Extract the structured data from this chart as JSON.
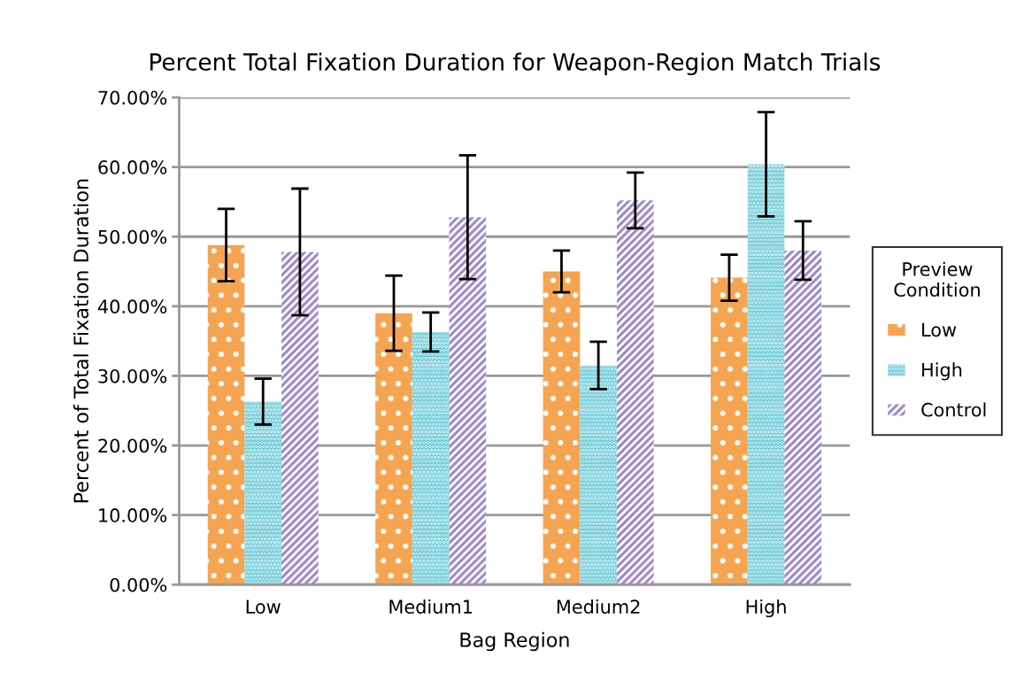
{
  "chart_data": {
    "type": "bar",
    "title": "Percent Total Fixation Duration for Weapon-Region Match Trials",
    "xlabel": "Bag Region",
    "ylabel": "Percent of Total Fixation Duration",
    "legend_title": "Preview Condition",
    "categories": [
      "Low",
      "Medium1",
      "Medium2",
      "High"
    ],
    "series": [
      {
        "name": "Low",
        "color": "#f5a451",
        "values": [
          48.8,
          39.0,
          45.0,
          44.1
        ],
        "errors": [
          5.2,
          5.4,
          3.0,
          3.3
        ]
      },
      {
        "name": "High",
        "color": "#4bbfcf",
        "values": [
          26.3,
          36.3,
          31.5,
          60.4
        ],
        "errors": [
          3.3,
          2.8,
          3.4,
          7.5
        ]
      },
      {
        "name": "Control",
        "color": "#9b87c4",
        "values": [
          47.8,
          52.8,
          55.2,
          48.0
        ],
        "errors": [
          9.1,
          8.9,
          4.0,
          4.2
        ]
      }
    ],
    "ylim": [
      0,
      70
    ],
    "yticks": [
      {
        "value": 0,
        "label": "0.00%"
      },
      {
        "value": 10,
        "label": "10.00%"
      },
      {
        "value": 20,
        "label": "20.00%"
      },
      {
        "value": 30,
        "label": "30.00%"
      },
      {
        "value": 40,
        "label": "40.00%"
      },
      {
        "value": 50,
        "label": "50.00%"
      },
      {
        "value": 60,
        "label": "60.00%"
      },
      {
        "value": 70,
        "label": "70.00%"
      }
    ],
    "grid": "y",
    "legend": "right"
  }
}
